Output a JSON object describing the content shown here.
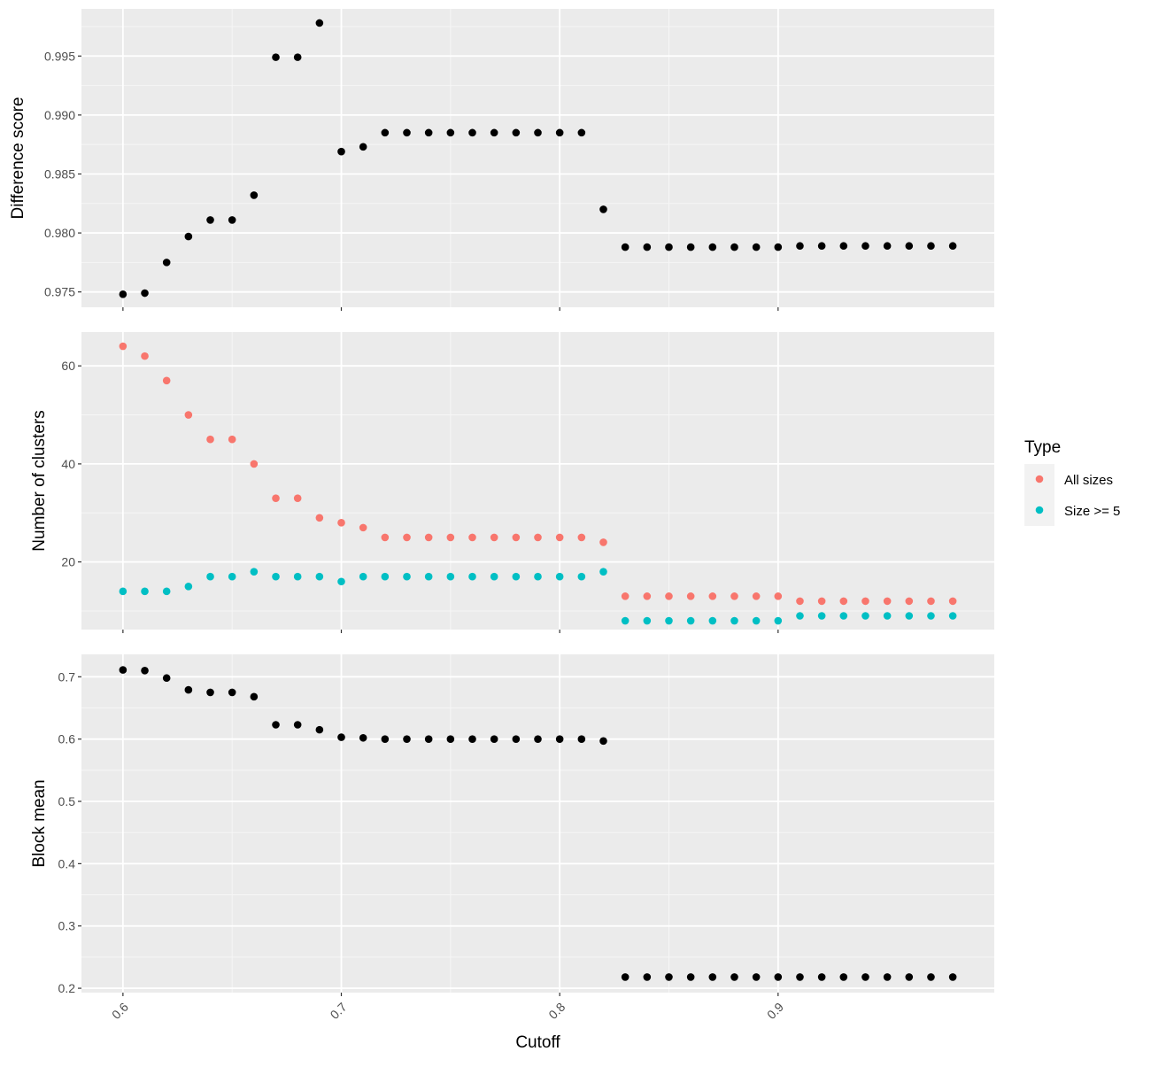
{
  "chart_data": {
    "type": "scatter",
    "xlabel": "Cutoff",
    "x_ticks": [
      "0.6",
      "0.7",
      "0.8",
      "0.9"
    ],
    "x_tick_values": [
      0.6,
      0.7,
      0.8,
      0.9
    ],
    "xlim": [
      0.581,
      0.999
    ],
    "grid": true,
    "legend": {
      "title": "Type",
      "placement": "right",
      "entries": [
        {
          "label": "All sizes",
          "color": "#F8766D"
        },
        {
          "label": "Size >= 5",
          "color": "#00BFC4"
        }
      ]
    },
    "x": [
      0.6,
      0.61,
      0.62,
      0.63,
      0.64,
      0.65,
      0.66,
      0.67,
      0.68,
      0.69,
      0.7,
      0.71,
      0.72,
      0.73,
      0.74,
      0.75,
      0.76,
      0.77,
      0.78,
      0.79,
      0.8,
      0.81,
      0.82,
      0.83,
      0.84,
      0.85,
      0.86,
      0.87,
      0.88,
      0.89,
      0.9,
      0.91,
      0.92,
      0.93,
      0.94,
      0.95,
      0.96,
      0.97,
      0.98
    ],
    "panels": [
      {
        "ylabel": "Difference score",
        "ylim": [
          0.9737,
          0.999
        ],
        "y_ticks": [
          "0.975",
          "0.980",
          "0.985",
          "0.990",
          "0.995"
        ],
        "y_tick_values": [
          0.975,
          0.98,
          0.985,
          0.99,
          0.995
        ],
        "series": [
          {
            "color": "#000000",
            "values": [
              0.9748,
              0.9749,
              0.9775,
              0.9797,
              0.9811,
              0.9811,
              0.9832,
              0.9949,
              0.9949,
              0.9978,
              0.9869,
              0.9873,
              0.9885,
              0.9885,
              0.9885,
              0.9885,
              0.9885,
              0.9885,
              0.9885,
              0.9885,
              0.9885,
              0.9885,
              0.982,
              0.9788,
              0.9788,
              0.9788,
              0.9788,
              0.9788,
              0.9788,
              0.9788,
              0.9788,
              0.9789,
              0.9789,
              0.9789,
              0.9789,
              0.9789,
              0.9789,
              0.9789,
              0.9789
            ]
          }
        ]
      },
      {
        "ylabel": "Number of clusters",
        "ylim": [
          6.2,
          66.9
        ],
        "y_ticks": [
          "20",
          "40",
          "60"
        ],
        "y_tick_values": [
          20,
          40,
          60
        ],
        "series": [
          {
            "name": "All sizes",
            "color": "#F8766D",
            "values": [
              64,
              62,
              57,
              50,
              45,
              45,
              40,
              33,
              33,
              29,
              28,
              27,
              25,
              25,
              25,
              25,
              25,
              25,
              25,
              25,
              25,
              25,
              24,
              13,
              13,
              13,
              13,
              13,
              13,
              13,
              13,
              12,
              12,
              12,
              12,
              12,
              12,
              12,
              12
            ]
          },
          {
            "name": "Size >= 5",
            "color": "#00BFC4",
            "values": [
              14,
              14,
              14,
              15,
              17,
              17,
              18,
              17,
              17,
              17,
              16,
              17,
              17,
              17,
              17,
              17,
              17,
              17,
              17,
              17,
              17,
              17,
              18,
              8,
              8,
              8,
              8,
              8,
              8,
              8,
              8,
              9,
              9,
              9,
              9,
              9,
              9,
              9,
              9
            ]
          }
        ]
      },
      {
        "ylabel": "Block mean",
        "ylim": [
          0.193,
          0.736
        ],
        "y_ticks": [
          "0.2",
          "0.3",
          "0.4",
          "0.5",
          "0.6",
          "0.7"
        ],
        "y_tick_values": [
          0.2,
          0.3,
          0.4,
          0.5,
          0.6,
          0.7
        ],
        "series": [
          {
            "color": "#000000",
            "values": [
              0.711,
              0.71,
              0.698,
              0.679,
              0.675,
              0.675,
              0.668,
              0.623,
              0.623,
              0.615,
              0.603,
              0.602,
              0.6,
              0.6,
              0.6,
              0.6,
              0.6,
              0.6,
              0.6,
              0.6,
              0.6,
              0.6,
              0.597,
              0.218,
              0.218,
              0.218,
              0.218,
              0.218,
              0.218,
              0.218,
              0.218,
              0.218,
              0.218,
              0.218,
              0.218,
              0.218,
              0.218,
              0.218,
              0.218
            ]
          }
        ]
      }
    ]
  }
}
